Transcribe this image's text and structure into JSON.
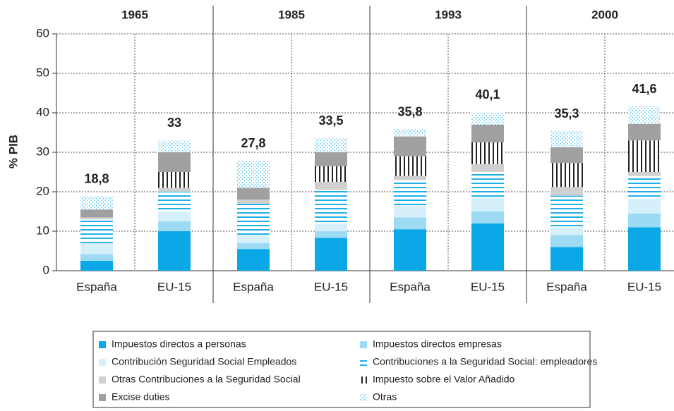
{
  "chart_data": {
    "type": "stacked-bar",
    "y_label": "% PIB",
    "groups": [
      "1965",
      "1985",
      "1993",
      "2000"
    ],
    "categories": [
      "España",
      "EU-15",
      "España",
      "EU-15",
      "España",
      "EU-15",
      "España",
      "EU-15"
    ],
    "ylim": [
      0,
      60
    ],
    "yticks": [
      0,
      10,
      20,
      30,
      40,
      50,
      60
    ],
    "grid": true,
    "series": [
      {
        "name": "Impuestos directos a personas",
        "color": "#0aa8e6",
        "pattern": "solid",
        "values": [
          2.5,
          10,
          5.5,
          8.3,
          10.5,
          12,
          6,
          11
        ]
      },
      {
        "name": "Impuestos directos empresas",
        "color": "#9ddbf5",
        "pattern": "solid",
        "values": [
          1.7,
          2.5,
          1.5,
          1.7,
          3,
          3,
          3,
          3.5
        ]
      },
      {
        "name": "Contribución Seguridad Social Empleados",
        "color": "#d5f0fb",
        "pattern": "solid",
        "values": [
          2.8,
          2.5,
          2,
          2,
          3,
          3.5,
          2,
          3.5
        ]
      },
      {
        "name": "Contribuciones a la Seguridad Social: empleadores",
        "color": "#1fb0ea",
        "pattern": "stripes-h",
        "values": [
          6,
          5,
          8,
          8.5,
          6.5,
          6.5,
          8,
          6
        ]
      },
      {
        "name": "Otras Contribuciones a la Seguridad Social",
        "color": "#d0d0d0",
        "pattern": "solid",
        "values": [
          0.5,
          1,
          1,
          2,
          1,
          2,
          2.2,
          1
        ]
      },
      {
        "name": "Impuesto sobre el Valor Añadido",
        "color": "#222222",
        "pattern": "stripes-v",
        "values": [
          0,
          4,
          0,
          4,
          5,
          5.5,
          6.1,
          8
        ]
      },
      {
        "name": "Excise duties",
        "color": "#a0a0a0",
        "pattern": "solid",
        "values": [
          2,
          5,
          3,
          3.5,
          5,
          4.5,
          4,
          4.2
        ]
      },
      {
        "name": "Otras",
        "color": "#4cc0ee",
        "pattern": "dots",
        "values": [
          3.3,
          3,
          6.8,
          3.5,
          1.8,
          3.1,
          4,
          4.4
        ]
      }
    ],
    "totals": [
      18.8,
      33,
      27.8,
      33.5,
      35.8,
      40.1,
      35.3,
      41.6
    ],
    "total_labels": [
      "18,8",
      "33",
      "27,8",
      "33,5",
      "35,8",
      "40,1",
      "35,3",
      "41,6"
    ]
  }
}
